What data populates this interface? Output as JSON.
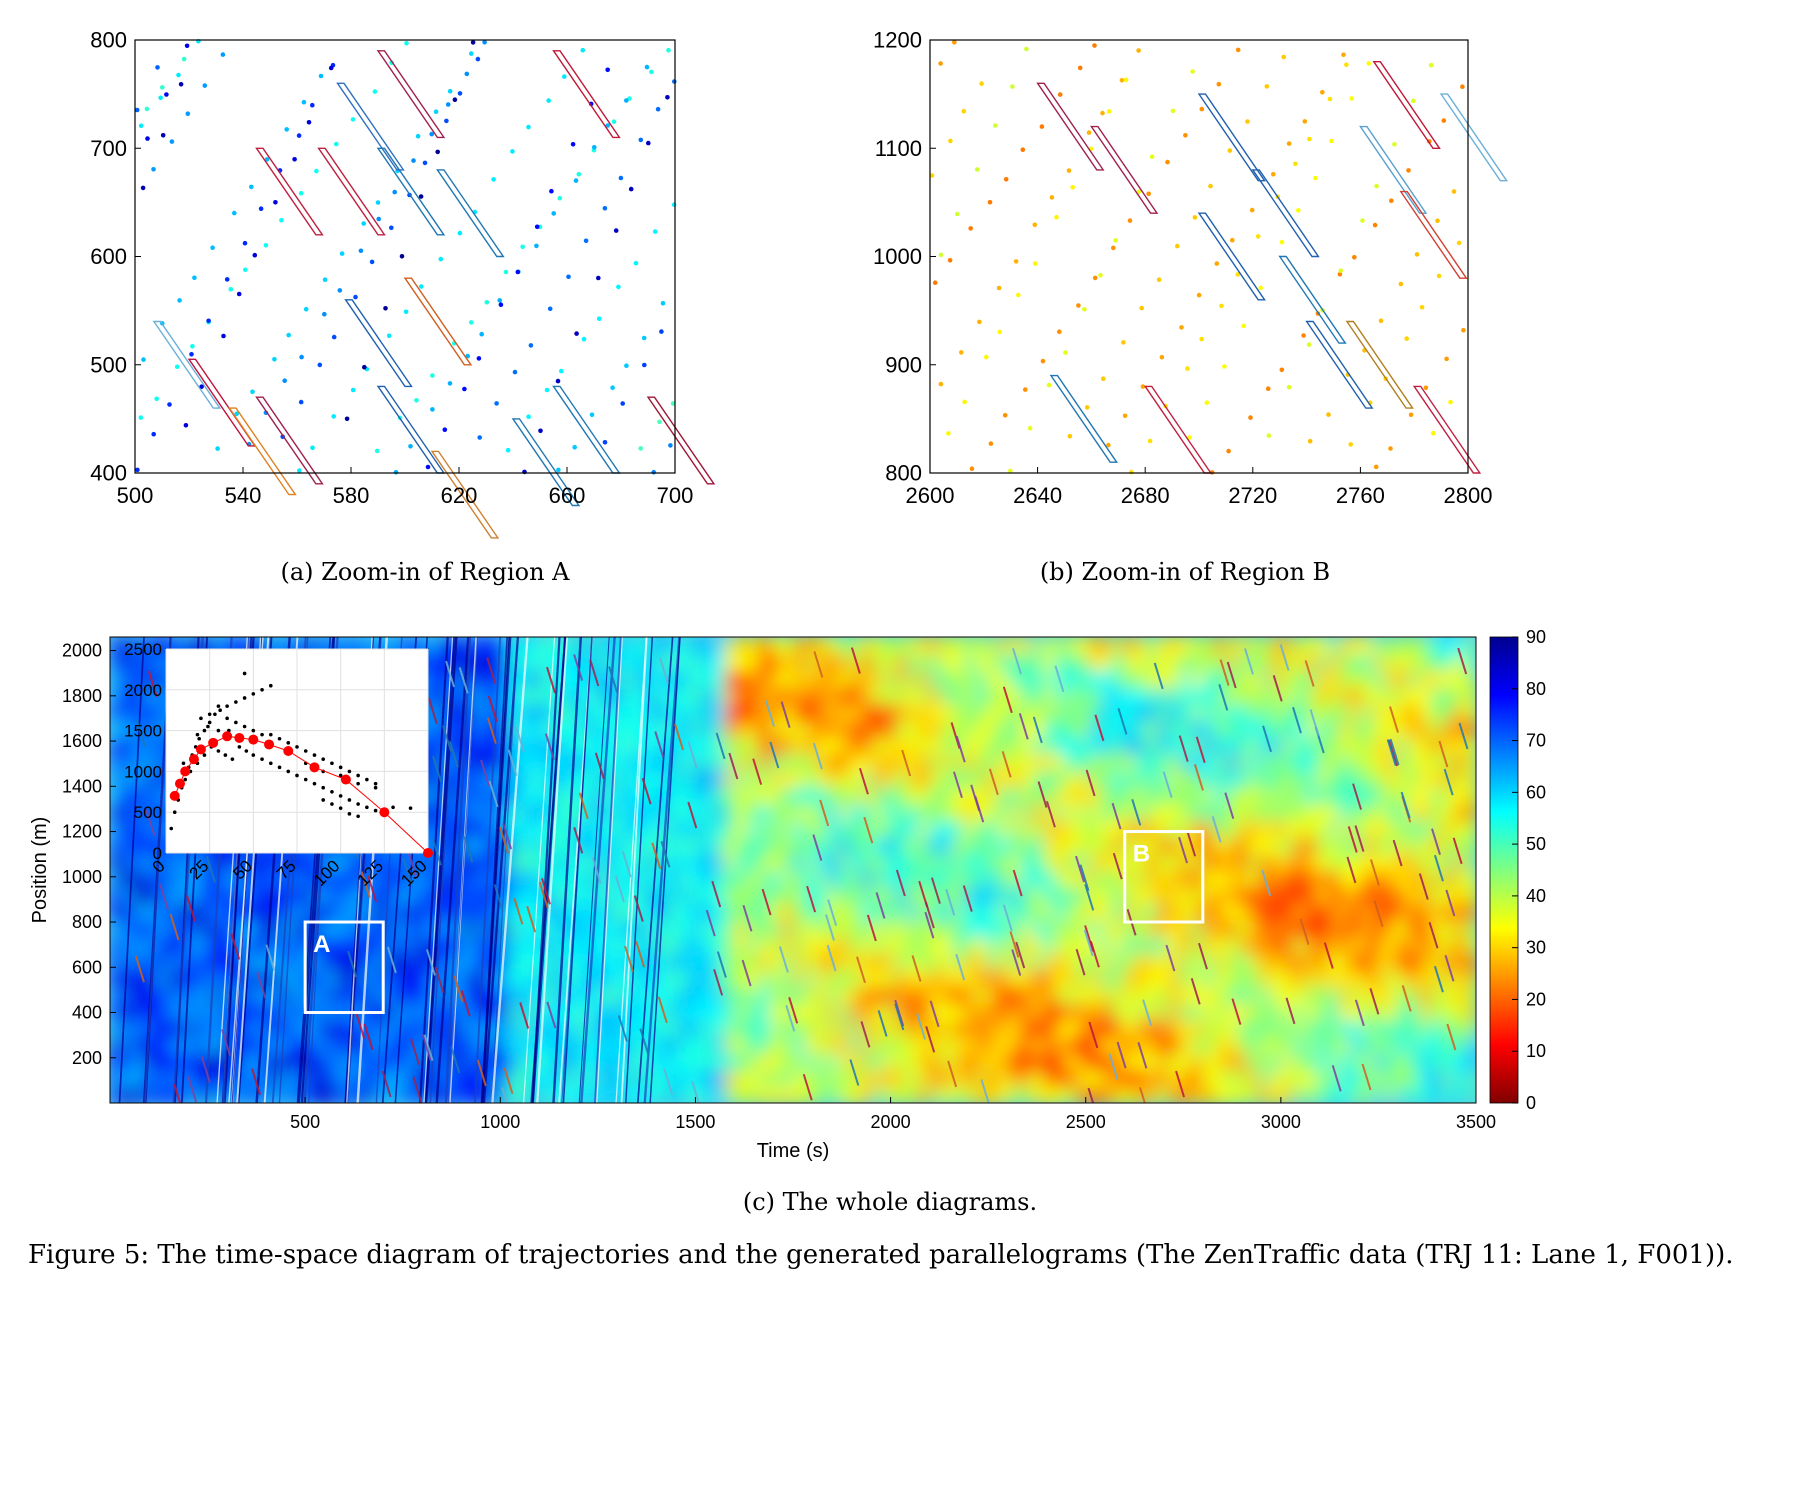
{
  "figure_caption": "Figure 5: The time-space diagram of trajectories and the generated parallelograms (The ZenTraffic data (TRJ 11: Lane 1, F001)).",
  "subcaptions": {
    "a": "(a) Zoom-in of Region A",
    "b": "(b) Zoom-in of Region B",
    "c": "(c) The whole diagrams."
  },
  "region_labels": {
    "a": "A",
    "b": "B"
  },
  "colormap": {
    "name": "jet-reversed",
    "low_color": "#800000",
    "high_color": "#00008f"
  },
  "chart_data": [
    {
      "id": "a",
      "type": "scatter",
      "title": "",
      "xlabel": "",
      "ylabel": "",
      "xlim": [
        500,
        700
      ],
      "ylim": [
        400,
        800
      ],
      "xticks": [
        "500",
        "540",
        "580",
        "620",
        "660",
        "700"
      ],
      "yticks": [
        "400",
        "500",
        "600",
        "700",
        "800"
      ],
      "speed_range": [
        35,
        90
      ],
      "vehicle_speeds": [
        55,
        60,
        52,
        58,
        70,
        65,
        80,
        85,
        62,
        55,
        75,
        82,
        60,
        66,
        72,
        58,
        88,
        54,
        63,
        78,
        69,
        57,
        84,
        61,
        73,
        50,
        67,
        76,
        59,
        81
      ],
      "parallelograms": [
        {
          "t": 520,
          "x": 505,
          "color": "#c0143c"
        },
        {
          "t": 535,
          "x": 460,
          "color": "#e08020"
        },
        {
          "t": 545,
          "x": 470,
          "color": "#a02050"
        },
        {
          "t": 568,
          "x": 700,
          "color": "#c02040"
        },
        {
          "t": 575,
          "x": 760,
          "color": "#3070c0"
        },
        {
          "t": 578,
          "x": 560,
          "color": "#2060b0"
        },
        {
          "t": 590,
          "x": 700,
          "color": "#1f77b4"
        },
        {
          "t": 600,
          "x": 580,
          "color": "#d06020"
        },
        {
          "t": 612,
          "x": 680,
          "color": "#1f77b4"
        },
        {
          "t": 590,
          "x": 480,
          "color": "#2060b0"
        },
        {
          "t": 640,
          "x": 450,
          "color": "#1f77b4"
        },
        {
          "t": 610,
          "x": 420,
          "color": "#d08030"
        },
        {
          "t": 655,
          "x": 480,
          "color": "#1f77b4"
        },
        {
          "t": 690,
          "x": 470,
          "color": "#a01838"
        },
        {
          "t": 545,
          "x": 700,
          "color": "#c02040"
        },
        {
          "t": 507,
          "x": 540,
          "color": "#6ab0d8"
        },
        {
          "t": 655,
          "x": 790,
          "color": "#c01838"
        },
        {
          "t": 590,
          "x": 790,
          "color": "#a02050"
        }
      ]
    },
    {
      "id": "b",
      "type": "scatter",
      "title": "",
      "xlabel": "",
      "ylabel": "",
      "xlim": [
        2600,
        2800
      ],
      "ylim": [
        800,
        1200
      ],
      "xticks": [
        "2600",
        "2640",
        "2680",
        "2720",
        "2760",
        "2800"
      ],
      "yticks": [
        "800",
        "900",
        "1000",
        "1100",
        "1200"
      ],
      "speed_range": [
        5,
        45
      ],
      "vehicle_speeds": [
        28,
        32,
        25,
        35,
        30,
        22,
        38,
        27,
        33,
        24,
        36,
        29,
        26,
        31,
        34,
        23,
        37,
        28,
        30,
        25,
        33,
        27,
        35,
        29
      ],
      "parallelograms": [
        {
          "t": 2645,
          "x": 890,
          "color": "#1f77b4"
        },
        {
          "t": 2680,
          "x": 880,
          "color": "#c02040"
        },
        {
          "t": 2700,
          "x": 1150,
          "color": "#2060b0"
        },
        {
          "t": 2720,
          "x": 1080,
          "color": "#2060b0"
        },
        {
          "t": 2730,
          "x": 1000,
          "color": "#1f77b4"
        },
        {
          "t": 2740,
          "x": 940,
          "color": "#2060b0"
        },
        {
          "t": 2760,
          "x": 1120,
          "color": "#5aa0d0"
        },
        {
          "t": 2775,
          "x": 1060,
          "color": "#d04030"
        },
        {
          "t": 2790,
          "x": 1150,
          "color": "#6ab0d8"
        },
        {
          "t": 2660,
          "x": 1120,
          "color": "#a02050"
        },
        {
          "t": 2780,
          "x": 880,
          "color": "#c02040"
        },
        {
          "t": 2755,
          "x": 940,
          "color": "#b08020"
        },
        {
          "t": 2640,
          "x": 1160,
          "color": "#a02050"
        },
        {
          "t": 2700,
          "x": 1040,
          "color": "#2060b0"
        },
        {
          "t": 2765,
          "x": 1180,
          "color": "#c01838"
        }
      ]
    },
    {
      "id": "c",
      "type": "heatmap",
      "title": "",
      "xlabel": "Time (s)",
      "ylabel": "Position (m)",
      "xlim": [
        0,
        3500
      ],
      "ylim": [
        0,
        2060
      ],
      "xticks": [
        "500",
        "1000",
        "1500",
        "2000",
        "2500",
        "3000",
        "3500"
      ],
      "yticks": [
        "200",
        "400",
        "600",
        "800",
        "1000",
        "1200",
        "1400",
        "1600",
        "1800",
        "2000"
      ],
      "colorbar": {
        "ticks": [
          "0",
          "10",
          "20",
          "30",
          "40",
          "50",
          "60",
          "70",
          "80",
          "90"
        ],
        "range": [
          0,
          90
        ]
      },
      "regions": [
        {
          "label": "A",
          "x": [
            500,
            700
          ],
          "y": [
            400,
            800
          ]
        },
        {
          "label": "B",
          "x": [
            2600,
            2800
          ],
          "y": [
            800,
            1200
          ]
        }
      ],
      "inset": {
        "type": "scatter",
        "xlim": [
          0,
          150
        ],
        "ylim": [
          0,
          2500
        ],
        "xticks": [
          "0",
          "25",
          "50",
          "75",
          "100",
          "125",
          "150"
        ],
        "yticks": [
          "0",
          "500",
          "1000",
          "1500",
          "2000",
          "2500"
        ],
        "red_points": [
          [
            5,
            700
          ],
          [
            8,
            850
          ],
          [
            11,
            1000
          ],
          [
            16,
            1150
          ],
          [
            20,
            1270
          ],
          [
            27,
            1350
          ],
          [
            35,
            1430
          ],
          [
            42,
            1410
          ],
          [
            50,
            1390
          ],
          [
            59,
            1330
          ],
          [
            70,
            1250
          ],
          [
            85,
            1050
          ],
          [
            103,
            900
          ],
          [
            125,
            500
          ],
          [
            150,
            0
          ]
        ],
        "black_points": [
          [
            3,
            300
          ],
          [
            5,
            500
          ],
          [
            7,
            650
          ],
          [
            9,
            800
          ],
          [
            11,
            900
          ],
          [
            13,
            1050
          ],
          [
            15,
            1200
          ],
          [
            17,
            1300
          ],
          [
            19,
            1400
          ],
          [
            22,
            1500
          ],
          [
            25,
            1600
          ],
          [
            28,
            1700
          ],
          [
            31,
            1750
          ],
          [
            35,
            1800
          ],
          [
            40,
            1850
          ],
          [
            45,
            1900
          ],
          [
            50,
            1950
          ],
          [
            55,
            2000
          ],
          [
            60,
            2050
          ],
          [
            45,
            2200
          ],
          [
            10,
            1100
          ],
          [
            14,
            1000
          ],
          [
            18,
            1100
          ],
          [
            22,
            1200
          ],
          [
            26,
            1300
          ],
          [
            30,
            1250
          ],
          [
            34,
            1200
          ],
          [
            38,
            1150
          ],
          [
            42,
            1300
          ],
          [
            46,
            1250
          ],
          [
            50,
            1200
          ],
          [
            55,
            1150
          ],
          [
            60,
            1100
          ],
          [
            65,
            1050
          ],
          [
            70,
            1000
          ],
          [
            75,
            950
          ],
          [
            80,
            900
          ],
          [
            85,
            850
          ],
          [
            90,
            800
          ],
          [
            95,
            750
          ],
          [
            100,
            700
          ],
          [
            105,
            650
          ],
          [
            110,
            600
          ],
          [
            115,
            560
          ],
          [
            120,
            520
          ],
          [
            60,
            1450
          ],
          [
            65,
            1400
          ],
          [
            70,
            1350
          ],
          [
            75,
            1300
          ],
          [
            80,
            1250
          ],
          [
            85,
            1200
          ],
          [
            90,
            1150
          ],
          [
            95,
            1100
          ],
          [
            100,
            1050
          ],
          [
            105,
            1000
          ],
          [
            110,
            950
          ],
          [
            115,
            900
          ],
          [
            120,
            850
          ],
          [
            20,
            1650
          ],
          [
            25,
            1700
          ],
          [
            30,
            1800
          ],
          [
            35,
            1650
          ],
          [
            40,
            1600
          ],
          [
            45,
            1550
          ],
          [
            50,
            1500
          ],
          [
            55,
            1450
          ],
          [
            18,
            1450
          ],
          [
            24,
            1550
          ],
          [
            30,
            1500
          ],
          [
            36,
            1500
          ],
          [
            80,
            1100
          ],
          [
            90,
            1000
          ],
          [
            100,
            950
          ],
          [
            110,
            850
          ],
          [
            120,
            800
          ],
          [
            130,
            560
          ],
          [
            140,
            550
          ],
          [
            90,
            650
          ],
          [
            95,
            600
          ],
          [
            100,
            550
          ],
          [
            105,
            480
          ],
          [
            110,
            450
          ]
        ]
      }
    }
  ]
}
